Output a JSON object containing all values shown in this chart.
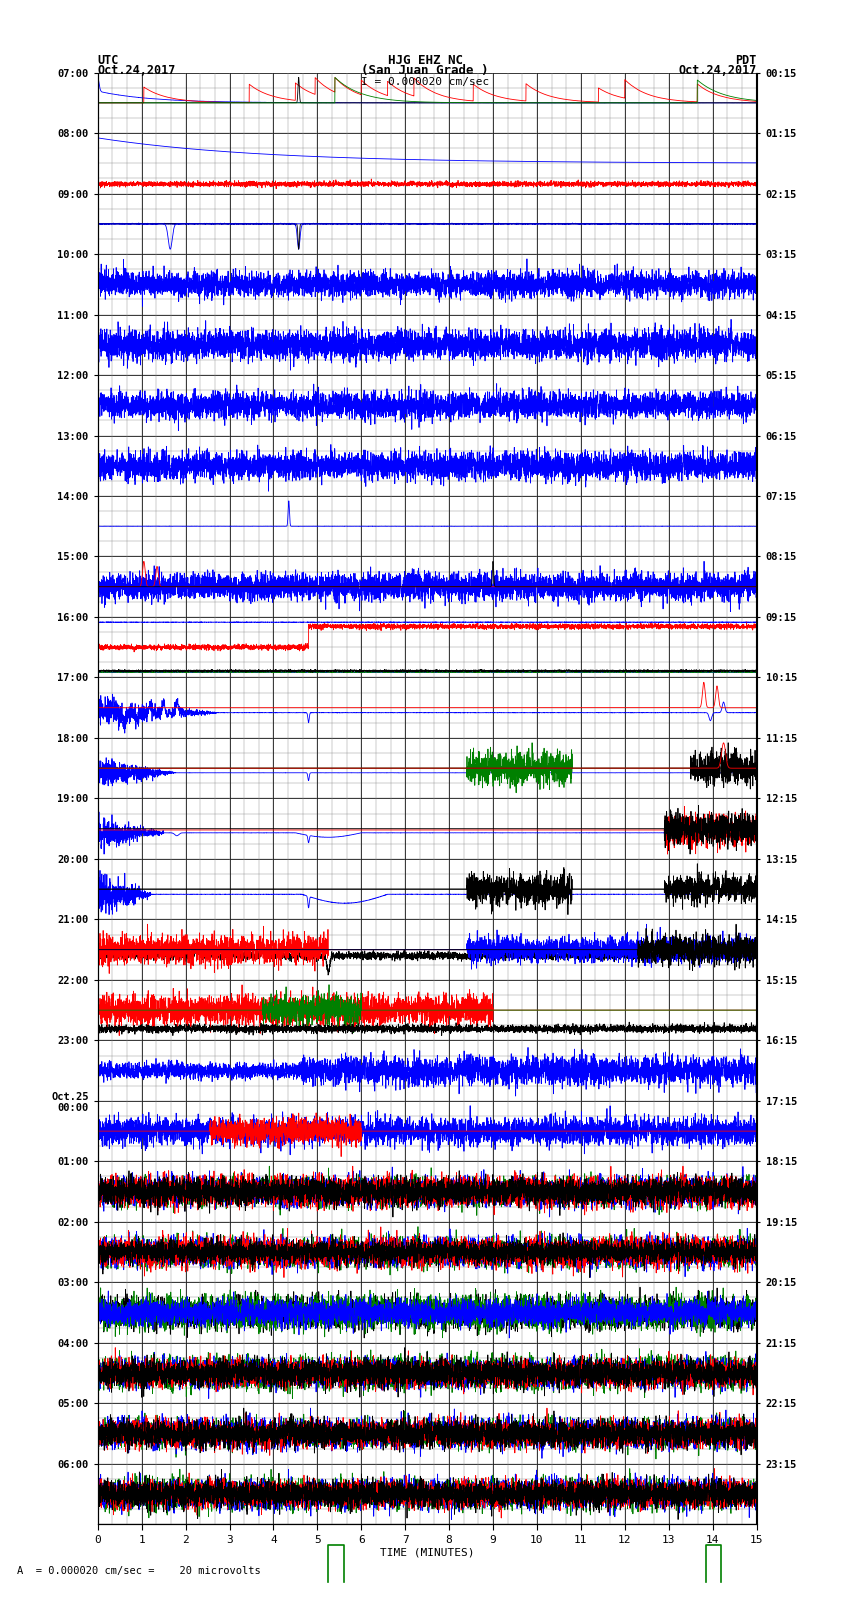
{
  "title_line1": "HJG EHZ NC",
  "title_line2": "(San Juan Grade )",
  "scale_label": "I = 0.000020 cm/sec",
  "left_header1": "UTC",
  "left_header2": "Oct.24,2017",
  "right_header1": "PDT",
  "right_header2": "Oct.24,2017",
  "utc_times": [
    "07:00",
    "08:00",
    "09:00",
    "10:00",
    "11:00",
    "12:00",
    "13:00",
    "14:00",
    "15:00",
    "16:00",
    "17:00",
    "18:00",
    "19:00",
    "20:00",
    "21:00",
    "22:00",
    "23:00",
    "Oct.25\n00:00",
    "01:00",
    "02:00",
    "03:00",
    "04:00",
    "05:00",
    "06:00"
  ],
  "pdt_times": [
    "00:15",
    "01:15",
    "02:15",
    "03:15",
    "04:15",
    "05:15",
    "06:15",
    "07:15",
    "08:15",
    "09:15",
    "10:15",
    "11:15",
    "12:15",
    "13:15",
    "14:15",
    "15:15",
    "16:15",
    "17:15",
    "18:15",
    "19:15",
    "20:15",
    "21:15",
    "22:15",
    "23:15"
  ],
  "xlabel": "TIME (MINUTES)",
  "bottom_label": "A  = 0.000020 cm/sec =    20 microvolts",
  "xlim": [
    0,
    15
  ],
  "xticks": [
    0,
    1,
    2,
    3,
    4,
    5,
    6,
    7,
    8,
    9,
    10,
    11,
    12,
    13,
    14,
    15
  ],
  "num_rows": 24,
  "bg_color": "#ffffff",
  "grid_color": "#888888",
  "bold_grid_color": "#000000"
}
